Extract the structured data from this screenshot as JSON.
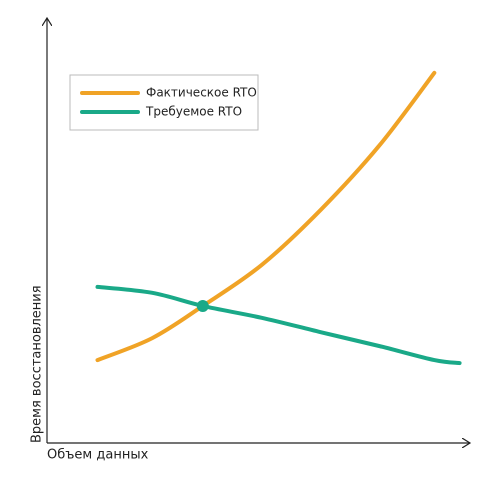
{
  "chart_data": {
    "type": "line",
    "x_label": "Объем данных",
    "y_label": "Время восстановления",
    "x": [
      12,
      25,
      37,
      51,
      65,
      79,
      92,
      98
    ],
    "xlim": [
      0,
      100
    ],
    "ylim": [
      0,
      100
    ],
    "series": [
      {
        "name": "Фактическое RTO",
        "color": "#f0a326",
        "values": [
          19.6,
          24.8,
          32.4,
          42.1,
          55.1,
          70.4,
          87.5,
          null
        ]
      },
      {
        "name": "Требуемое RTO",
        "color": "#1aa988",
        "values": [
          36.9,
          35.5,
          32.4,
          29.6,
          26.2,
          22.9,
          19.6,
          18.9
        ]
      }
    ],
    "intersection": {
      "x": 37,
      "y": 32.4,
      "color": "#1aa988"
    }
  }
}
